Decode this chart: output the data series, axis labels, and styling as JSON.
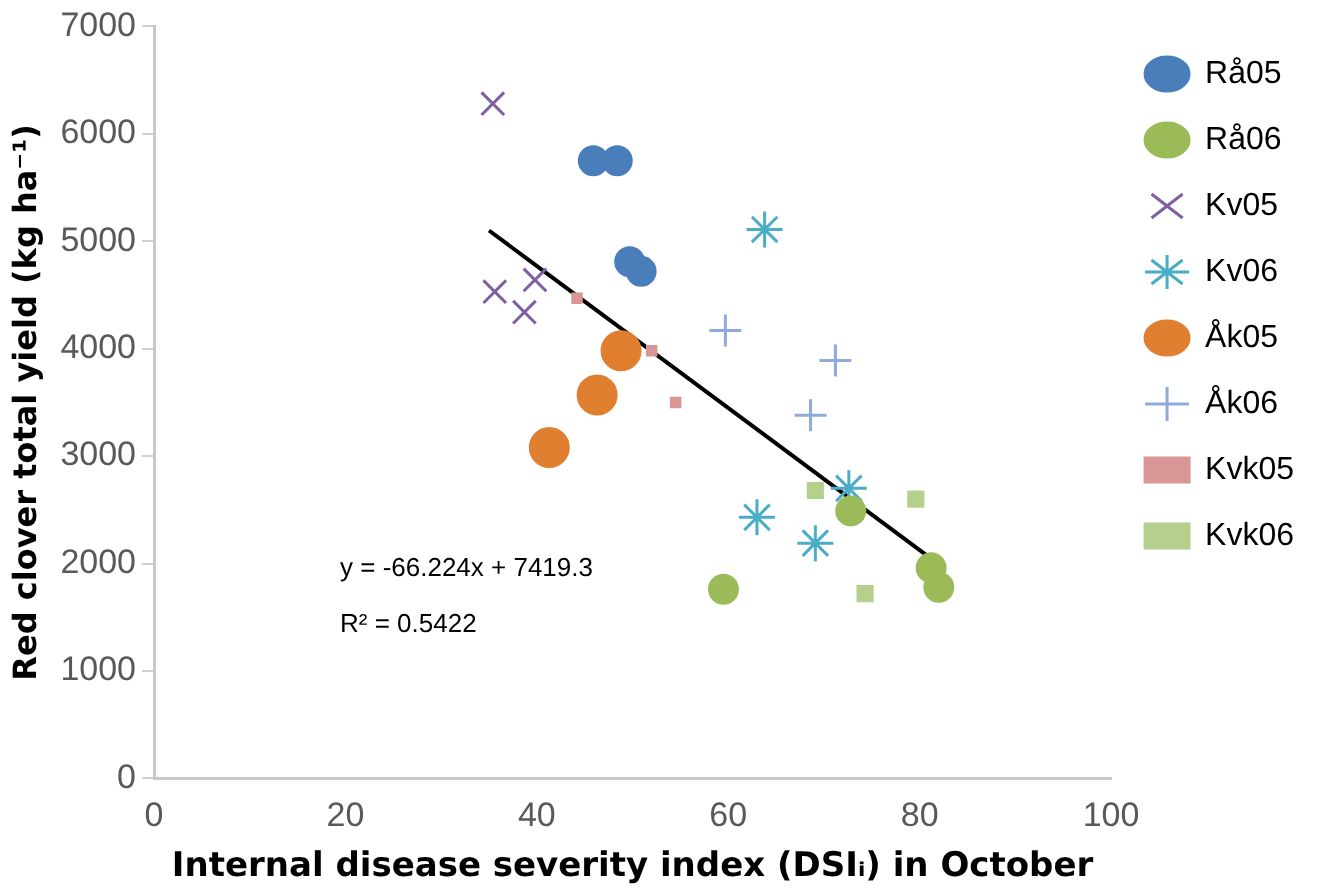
{
  "chart_data": {
    "type": "scatter",
    "xlabel": "Internal disease severity index (DSIᵢ) in October",
    "ylabel": "Red clover total yield (kg ha⁻¹)",
    "xlim": [
      0,
      100
    ],
    "xticks": [
      0,
      20,
      40,
      60,
      80,
      100
    ],
    "ylim": [
      0,
      7000
    ],
    "yticks": [
      0,
      1000,
      2000,
      3000,
      4000,
      5000,
      6000,
      7000
    ],
    "grid": false,
    "legend": "right",
    "annotations": [
      "y = -66.224x + 7419.3",
      "R² = 0.5422"
    ],
    "series": [
      {
        "name": "Rå05",
        "color": "#4a7ebb",
        "marker": "circle",
        "x": [
          45.9,
          48.4,
          49.7,
          50.9
        ],
        "values": [
          5750,
          5750,
          4810,
          4720
        ]
      },
      {
        "name": "Rå06",
        "color": "#9bbb59",
        "marker": "circle",
        "x": [
          72.8,
          59.5,
          81.2,
          82
        ],
        "values": [
          2490,
          1760,
          1960,
          1780
        ]
      },
      {
        "name": "Kv05",
        "color": "#7f5fa0",
        "marker": "cross",
        "x": [
          35.4,
          35.6,
          39.8,
          38.7
        ],
        "values": [
          6280,
          4530,
          4640,
          4340
        ]
      },
      {
        "name": "Kv06",
        "color": "#4bacc6",
        "x": [
          63.8,
          63,
          69.1,
          72.6
        ],
        "values": [
          5110,
          2430,
          2190,
          2700
        ]
      },
      {
        "name": "Åk05",
        "color": "#e07f30",
        "marker": "circle",
        "x": [
          48.8,
          46.3,
          41.3
        ],
        "values": [
          3980,
          3570,
          3080
        ]
      },
      {
        "name": "Åk06",
        "color": "#8faadc",
        "x": [
          59.7,
          71.2,
          68.6
        ],
        "values": [
          4170,
          3890,
          3380
        ]
      },
      {
        "name": "Kvk05",
        "color": "#d99694",
        "marker": "square",
        "x": [
          44.2,
          52,
          54.5
        ],
        "values": [
          4470,
          3980,
          3500
        ]
      },
      {
        "name": "Kvk06",
        "color": "#b5cf8c",
        "marker": "square",
        "x": [
          69.1,
          79.6,
          74.3
        ],
        "values": [
          2680,
          2600,
          1720
        ]
      },
      {
        "type": "line",
        "color": "#000000",
        "marker": "none",
        "x": [
          35,
          82.5
        ],
        "values": [
          5100,
          1960
        ]
      }
    ]
  }
}
